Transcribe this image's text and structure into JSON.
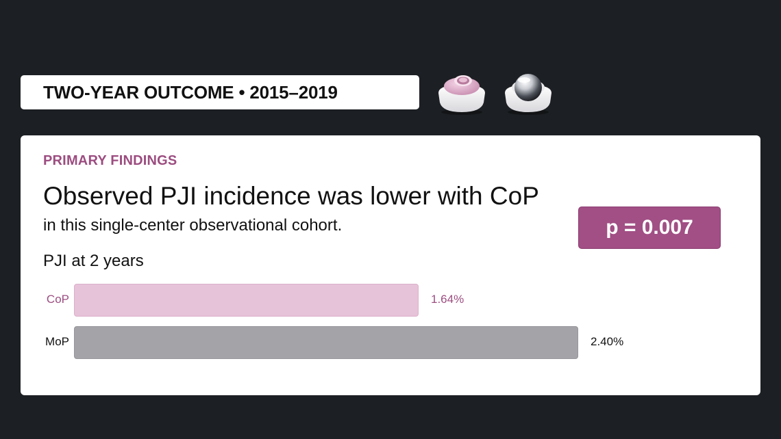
{
  "header": {
    "title": "TWO-YEAR OUTCOME • 2015–2019",
    "implant_icons": [
      "ceramic-on-polyethylene-implant-icon",
      "metal-on-polyethylene-implant-icon"
    ]
  },
  "card": {
    "kicker": "PRIMARY FINDINGS",
    "headline": "Observed PJI incidence was lower with CoP",
    "subline": "in this single-center observational cohort.",
    "p_value": "p = 0.007",
    "metric_label": "PJI at 2 years"
  },
  "chart_data": {
    "type": "bar",
    "orientation": "horizontal",
    "categories": [
      "CoP",
      "MoP"
    ],
    "values": [
      1.64,
      2.4
    ],
    "value_labels": [
      "1.64%",
      "2.40%"
    ],
    "unit": "%",
    "xlim": [
      0,
      2.4
    ],
    "title": "PJI at 2 years",
    "colors": [
      "#e7c3d9",
      "#a3a3a8"
    ]
  },
  "colors": {
    "background": "#1c1f23",
    "accent": "#a14f85",
    "kicker": "#9c4d80",
    "cop_bar": "#e7c3d9",
    "mop_bar": "#a3a3a8"
  }
}
